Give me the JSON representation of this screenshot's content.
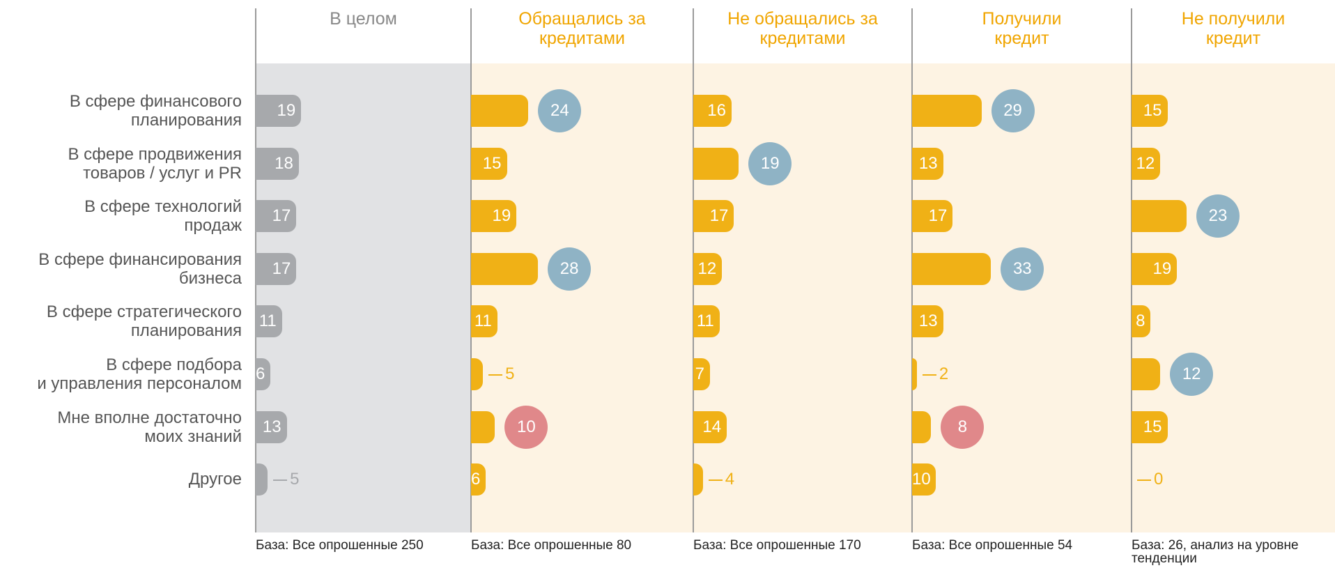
{
  "chart_data": {
    "type": "bar",
    "categories": [
      "В сфере финансового\nпланирования",
      "В сфере продвижения\nтоваров / услуг и PR",
      "В сфере технологий\nпродаж",
      "В сфере финансирования\nбизнеса",
      "В сфере стратегического\nпланирования",
      "В сфере подбора\nи управления персоналом",
      "Мне вполне достаточно\nмоих знаний",
      "Другое"
    ],
    "xlim": [
      0,
      90
    ],
    "series": [
      {
        "name": "В целом",
        "color": "#a7a9ac",
        "background": "#e1e2e4",
        "values": [
          19,
          18,
          17,
          17,
          11,
          6,
          13,
          5
        ],
        "circle_colors": [
          null,
          null,
          null,
          null,
          null,
          null,
          null,
          null
        ],
        "note": "База: Все опрошенные 250"
      },
      {
        "name": "Обращались за\nкредитами",
        "color": "#f0b116",
        "background": "#fdf3e3",
        "values": [
          24,
          15,
          19,
          28,
          11,
          5,
          10,
          6
        ],
        "circle_colors": [
          "#8fb3c5",
          null,
          null,
          "#8fb3c5",
          null,
          null,
          "#e0888a",
          null
        ],
        "note": "База: Все опрошенные 80"
      },
      {
        "name": "Не обращались за\nкредитами",
        "color": "#f0b116",
        "background": "#fdf3e3",
        "values": [
          16,
          19,
          17,
          12,
          11,
          7,
          14,
          4
        ],
        "circle_colors": [
          null,
          "#8fb3c5",
          null,
          null,
          null,
          null,
          null,
          null
        ],
        "note": "База: Все опрошенные 170"
      },
      {
        "name": "Получили\nкредит",
        "color": "#f0b116",
        "background": "#fdf3e3",
        "values": [
          29,
          13,
          17,
          33,
          13,
          2,
          8,
          10
        ],
        "circle_colors": [
          "#8fb3c5",
          null,
          null,
          "#8fb3c5",
          null,
          null,
          "#e0888a",
          null
        ],
        "note": "База: Все опрошенные 54"
      },
      {
        "name": "Не получили\nкредит",
        "color": "#f0b116",
        "background": "#fdf3e3",
        "values": [
          15,
          12,
          23,
          19,
          8,
          12,
          15,
          0
        ],
        "circle_colors": [
          null,
          null,
          "#8fb3c5",
          null,
          null,
          "#8fb3c5",
          null,
          null
        ],
        "note": "База: 26, анализ на уровне\nтенденции"
      }
    ]
  }
}
